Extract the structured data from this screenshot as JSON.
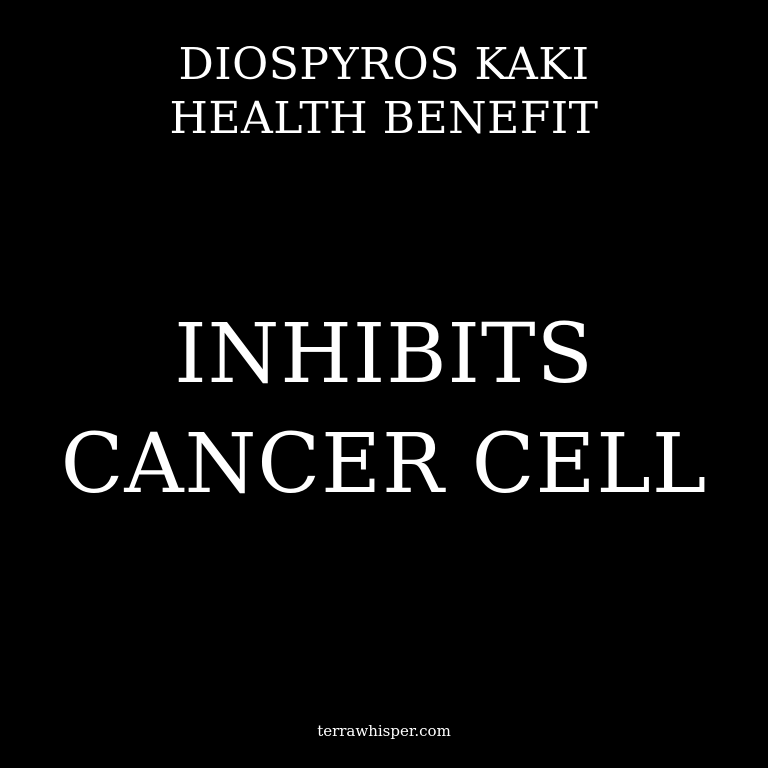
{
  "colors": {
    "background": "#000000",
    "text": "#ffffff"
  },
  "title": {
    "line1": "DIOSPYROS KAKI",
    "line2": "HEALTH BENEFIT"
  },
  "headline": {
    "line1": "INHIBITS",
    "line2": "CANCER CELL"
  },
  "footer": {
    "site": "terrawhisper.com"
  }
}
